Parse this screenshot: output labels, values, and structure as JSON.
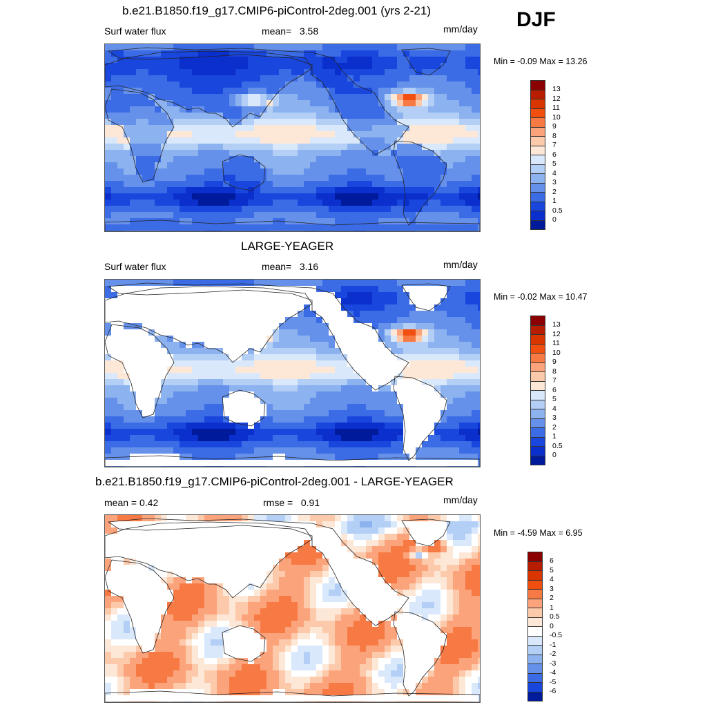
{
  "season": "DJF",
  "units": "mm/day",
  "panels": [
    {
      "title": "b.e21.B1850.f19_g17.CMIP6-piControl-2deg.001 (yrs 2-21)",
      "left_label": "Surf water flux",
      "stat_label": "mean=",
      "stat_value": "3.58",
      "units": "mm/day",
      "minmax": "Min =  -0.09 Max =  13.26",
      "land_masked": false,
      "scale": "abs"
    },
    {
      "title": "LARGE-YEAGER",
      "left_label": "Surf water flux",
      "stat_label": "mean=",
      "stat_value": "3.16",
      "units": "mm/day",
      "minmax": "Min =  -0.02 Max =  10.47",
      "land_masked": true,
      "scale": "abs"
    },
    {
      "title": "b.e21.B1850.f19_g17.CMIP6-piControl-2deg.001 - LARGE-YEAGER",
      "left_label": "mean =   0.42",
      "stat_label": "rmse =",
      "stat_value": "0.91",
      "units": "mm/day",
      "minmax": "Min =  -4.59 Max =   6.95",
      "land_masked": true,
      "scale": "diff"
    }
  ],
  "chart_data": [
    {
      "type": "heatmap",
      "title": "b.e21.B1850.f19_g17.CMIP6-piControl-2deg.001 (yrs 2-21)",
      "variable": "Surf water flux",
      "units": "mm/day",
      "mean": 3.58,
      "min": -0.09,
      "max": 13.26,
      "colorbar_levels": [
        "13",
        "12",
        "11",
        "10",
        "9",
        "8",
        "7",
        "6",
        "5",
        "4",
        "3",
        "2",
        "1",
        "0.5",
        "0"
      ],
      "colors": [
        "#8b0000",
        "#b81d00",
        "#d83500",
        "#f04f10",
        "#f77a45",
        "#fba47c",
        "#fdc9ab",
        "#fde8d8",
        "#d9e8fb",
        "#b4cff6",
        "#8cb2f0",
        "#6591ea",
        "#3b6ce6",
        "#1947dd",
        "#0b2fcc",
        "#001a9c"
      ]
    },
    {
      "type": "heatmap",
      "title": "LARGE-YEAGER",
      "variable": "Surf water flux",
      "units": "mm/day",
      "mean": 3.16,
      "min": -0.02,
      "max": 10.47,
      "colorbar_levels": [
        "13",
        "12",
        "11",
        "10",
        "9",
        "8",
        "7",
        "6",
        "5",
        "4",
        "3",
        "2",
        "1",
        "0.5",
        "0"
      ],
      "colors": [
        "#8b0000",
        "#b81d00",
        "#d83500",
        "#f04f10",
        "#f77a45",
        "#fba47c",
        "#fdc9ab",
        "#fde8d8",
        "#d9e8fb",
        "#b4cff6",
        "#8cb2f0",
        "#6591ea",
        "#3b6ce6",
        "#1947dd",
        "#0b2fcc",
        "#001a9c"
      ]
    },
    {
      "type": "heatmap",
      "title": "b.e21.B1850.f19_g17.CMIP6-piControl-2deg.001 - LARGE-YEAGER",
      "units": "mm/day",
      "mean": 0.42,
      "rmse": 0.91,
      "min": -4.59,
      "max": 6.95,
      "colorbar_levels": [
        "6",
        "5",
        "4",
        "3",
        "2",
        "1",
        "0.5",
        "0",
        "-0.5",
        "-1",
        "-2",
        "-3",
        "-4",
        "-5",
        "-6"
      ],
      "colors": [
        "#8b0000",
        "#b81d00",
        "#d83500",
        "#f04f10",
        "#f77a45",
        "#fba47c",
        "#fdc9ab",
        "#fde8d8",
        "#ffffff",
        "#d9e8fb",
        "#b4cff6",
        "#8cb2f0",
        "#6591ea",
        "#3b6ce6",
        "#1947dd",
        "#001a9c"
      ]
    }
  ]
}
